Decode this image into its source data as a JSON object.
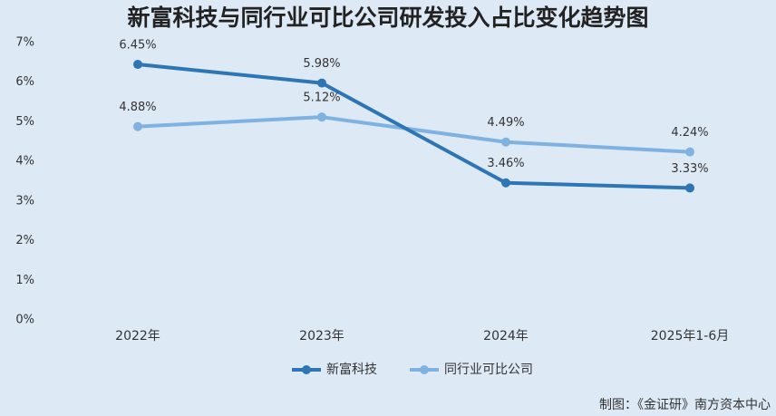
{
  "chart_data": {
    "type": "line",
    "title": "新富科技与同行业可比公司研发投入占比变化趋势图",
    "categories": [
      "2022年",
      "2023年",
      "2024年",
      "2025年1-6月"
    ],
    "series": [
      {
        "name": "新富科技",
        "color": "#2e75b6",
        "values": [
          6.45,
          5.98,
          3.46,
          3.33
        ],
        "value_labels": [
          "6.45%",
          "5.98%",
          "3.46%",
          "3.33%"
        ]
      },
      {
        "name": "同行业可比公司",
        "color": "#7fb2e0",
        "values": [
          4.88,
          5.12,
          4.49,
          4.24
        ],
        "value_labels": [
          "4.88%",
          "5.12%",
          "4.49%",
          "4.24%"
        ]
      }
    ],
    "ylim": [
      0,
      7
    ],
    "yticks": [
      {
        "value": 0,
        "label": "0%"
      },
      {
        "value": 1,
        "label": "1%"
      },
      {
        "value": 2,
        "label": "2%"
      },
      {
        "value": 3,
        "label": "3%"
      },
      {
        "value": 4,
        "label": "4%"
      },
      {
        "value": 5,
        "label": "5%"
      },
      {
        "value": 6,
        "label": "6%"
      },
      {
        "value": 7,
        "label": "7%"
      }
    ],
    "grid": false,
    "legend": "bottom",
    "source": "制图：《金证研》南方资本中心"
  }
}
